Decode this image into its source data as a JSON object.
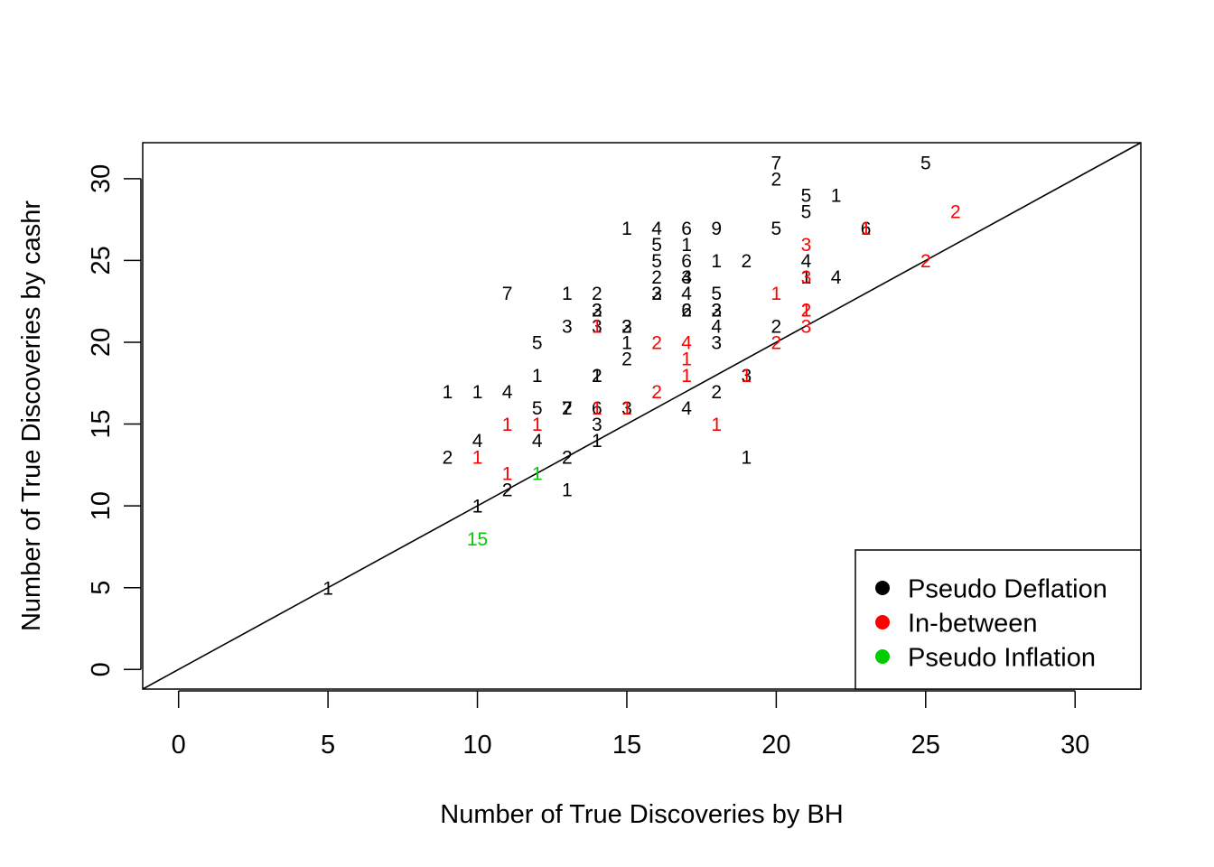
{
  "chart_data": {
    "type": "scatter",
    "title": "",
    "xlabel": "Number of True Discoveries by BH",
    "ylabel": "Number of True Discoveries by cashr",
    "xlim": [
      -1.2,
      32.2
    ],
    "ylim": [
      -1.2,
      32.2
    ],
    "x_ticks": [
      0,
      5,
      10,
      15,
      20,
      25,
      30
    ],
    "y_ticks": [
      0,
      5,
      10,
      15,
      20,
      25,
      30
    ],
    "x_tick_labels": [
      "0",
      "5",
      "10",
      "15",
      "20",
      "25",
      "30"
    ],
    "y_tick_labels": [
      "0",
      "5",
      "10",
      "15",
      "20",
      "25",
      "30"
    ],
    "reference_line": {
      "type": "identity",
      "slope": 1,
      "intercept": 0
    },
    "grid": false,
    "legend": {
      "position": "bottom-right",
      "entries": [
        {
          "label": "Pseudo Deflation",
          "color": "#000000"
        },
        {
          "label": "In-between",
          "color": "#ff0000"
        },
        {
          "label": "Pseudo Inflation",
          "color": "#00cc00"
        }
      ]
    },
    "series": [
      {
        "name": "Pseudo Deflation",
        "color": "#000000",
        "points": [
          {
            "x": 5,
            "y": 5,
            "label": "1"
          },
          {
            "x": 9,
            "y": 13,
            "label": "2"
          },
          {
            "x": 9,
            "y": 17,
            "label": "1"
          },
          {
            "x": 10,
            "y": 10,
            "label": "1"
          },
          {
            "x": 10,
            "y": 14,
            "label": "4"
          },
          {
            "x": 10,
            "y": 17,
            "label": "1"
          },
          {
            "x": 11,
            "y": 11,
            "label": "2"
          },
          {
            "x": 11,
            "y": 17,
            "label": "4"
          },
          {
            "x": 11,
            "y": 23,
            "label": "7"
          },
          {
            "x": 12,
            "y": 14,
            "label": "4"
          },
          {
            "x": 12,
            "y": 16,
            "label": "5"
          },
          {
            "x": 12,
            "y": 18,
            "label": "1"
          },
          {
            "x": 12,
            "y": 20,
            "label": "5"
          },
          {
            "x": 13,
            "y": 11,
            "label": "1"
          },
          {
            "x": 13,
            "y": 13,
            "label": "2"
          },
          {
            "x": 13,
            "y": 16,
            "label": "7"
          },
          {
            "x": 13,
            "y": 16,
            "label": "2"
          },
          {
            "x": 13,
            "y": 21,
            "label": "3"
          },
          {
            "x": 13,
            "y": 23,
            "label": "1"
          },
          {
            "x": 14,
            "y": 14,
            "label": "1"
          },
          {
            "x": 14,
            "y": 15,
            "label": "3"
          },
          {
            "x": 14,
            "y": 16,
            "label": "6"
          },
          {
            "x": 14,
            "y": 18,
            "label": "2"
          },
          {
            "x": 14,
            "y": 18,
            "label": "1"
          },
          {
            "x": 14,
            "y": 21,
            "label": "3"
          },
          {
            "x": 14,
            "y": 22,
            "label": "3"
          },
          {
            "x": 14,
            "y": 22,
            "label": "2"
          },
          {
            "x": 14,
            "y": 23,
            "label": "2"
          },
          {
            "x": 15,
            "y": 16,
            "label": "3"
          },
          {
            "x": 15,
            "y": 19,
            "label": "2"
          },
          {
            "x": 15,
            "y": 20,
            "label": "1"
          },
          {
            "x": 15,
            "y": 21,
            "label": "2"
          },
          {
            "x": 15,
            "y": 21,
            "label": "3"
          },
          {
            "x": 15,
            "y": 27,
            "label": "1"
          },
          {
            "x": 16,
            "y": 23,
            "label": "2"
          },
          {
            "x": 16,
            "y": 23,
            "label": "3"
          },
          {
            "x": 16,
            "y": 24,
            "label": "2"
          },
          {
            "x": 16,
            "y": 25,
            "label": "5"
          },
          {
            "x": 16,
            "y": 26,
            "label": "5"
          },
          {
            "x": 16,
            "y": 27,
            "label": "4"
          },
          {
            "x": 17,
            "y": 16,
            "label": "4"
          },
          {
            "x": 17,
            "y": 22,
            "label": "6"
          },
          {
            "x": 17,
            "y": 22,
            "label": "2"
          },
          {
            "x": 17,
            "y": 23,
            "label": "4"
          },
          {
            "x": 17,
            "y": 24,
            "label": "3"
          },
          {
            "x": 17,
            "y": 24,
            "label": "4"
          },
          {
            "x": 17,
            "y": 25,
            "label": "6"
          },
          {
            "x": 17,
            "y": 26,
            "label": "1"
          },
          {
            "x": 17,
            "y": 27,
            "label": "6"
          },
          {
            "x": 18,
            "y": 17,
            "label": "2"
          },
          {
            "x": 18,
            "y": 20,
            "label": "3"
          },
          {
            "x": 18,
            "y": 21,
            "label": "4"
          },
          {
            "x": 18,
            "y": 22,
            "label": "2"
          },
          {
            "x": 18,
            "y": 22,
            "label": "3"
          },
          {
            "x": 18,
            "y": 23,
            "label": "5"
          },
          {
            "x": 18,
            "y": 25,
            "label": "1"
          },
          {
            "x": 18,
            "y": 27,
            "label": "9"
          },
          {
            "x": 19,
            "y": 13,
            "label": "1"
          },
          {
            "x": 19,
            "y": 18,
            "label": "3"
          },
          {
            "x": 19,
            "y": 25,
            "label": "2"
          },
          {
            "x": 20,
            "y": 21,
            "label": "2"
          },
          {
            "x": 20,
            "y": 27,
            "label": "5"
          },
          {
            "x": 20,
            "y": 30,
            "label": "2"
          },
          {
            "x": 20,
            "y": 31,
            "label": "7"
          },
          {
            "x": 21,
            "y": 24,
            "label": "1"
          },
          {
            "x": 21,
            "y": 25,
            "label": "4"
          },
          {
            "x": 21,
            "y": 28,
            "label": "5"
          },
          {
            "x": 21,
            "y": 29,
            "label": "5"
          },
          {
            "x": 22,
            "y": 24,
            "label": "4"
          },
          {
            "x": 22,
            "y": 29,
            "label": "1"
          },
          {
            "x": 23,
            "y": 27,
            "label": "6"
          },
          {
            "x": 25,
            "y": 31,
            "label": "5"
          }
        ]
      },
      {
        "name": "In-between",
        "color": "#ff0000",
        "points": [
          {
            "x": 10,
            "y": 13,
            "label": "1"
          },
          {
            "x": 11,
            "y": 12,
            "label": "1"
          },
          {
            "x": 11,
            "y": 15,
            "label": "1"
          },
          {
            "x": 12,
            "y": 15,
            "label": "1"
          },
          {
            "x": 14,
            "y": 21,
            "label": "1"
          },
          {
            "x": 14,
            "y": 16,
            "label": "1"
          },
          {
            "x": 15,
            "y": 16,
            "label": "1"
          },
          {
            "x": 16,
            "y": 17,
            "label": "2"
          },
          {
            "x": 16,
            "y": 20,
            "label": "2"
          },
          {
            "x": 17,
            "y": 18,
            "label": "1"
          },
          {
            "x": 17,
            "y": 19,
            "label": "1"
          },
          {
            "x": 17,
            "y": 20,
            "label": "4"
          },
          {
            "x": 18,
            "y": 15,
            "label": "1"
          },
          {
            "x": 19,
            "y": 18,
            "label": "1"
          },
          {
            "x": 20,
            "y": 20,
            "label": "2"
          },
          {
            "x": 20,
            "y": 23,
            "label": "1"
          },
          {
            "x": 21,
            "y": 21,
            "label": "3"
          },
          {
            "x": 21,
            "y": 22,
            "label": "1"
          },
          {
            "x": 21,
            "y": 22,
            "label": "2"
          },
          {
            "x": 21,
            "y": 24,
            "label": "3"
          },
          {
            "x": 21,
            "y": 26,
            "label": "3"
          },
          {
            "x": 23,
            "y": 27,
            "label": "1"
          },
          {
            "x": 25,
            "y": 25,
            "label": "2"
          },
          {
            "x": 26,
            "y": 28,
            "label": "2"
          }
        ]
      },
      {
        "name": "Pseudo Inflation",
        "color": "#00cc00",
        "points": [
          {
            "x": 10,
            "y": 8,
            "label": "15"
          },
          {
            "x": 12,
            "y": 12,
            "label": "1"
          }
        ]
      }
    ]
  }
}
